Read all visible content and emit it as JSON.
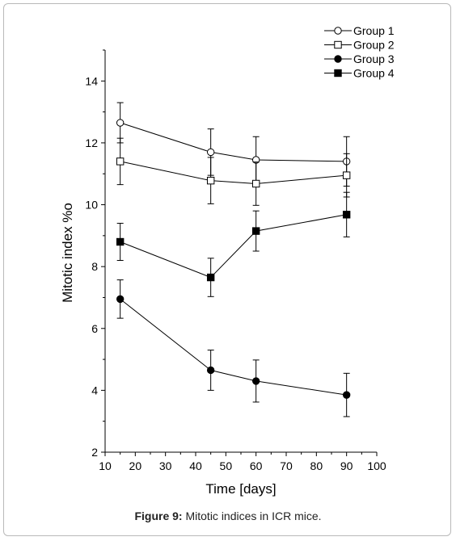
{
  "chart_data": {
    "type": "line",
    "xlabel": "Time [days]",
    "ylabel": "Mitotic index %o",
    "xlim": [
      10,
      100
    ],
    "ylim": [
      2,
      15
    ],
    "xticks": [
      10,
      20,
      30,
      40,
      50,
      60,
      70,
      80,
      90,
      100
    ],
    "yticks": [
      2,
      4,
      6,
      8,
      10,
      12,
      14
    ],
    "grid": false,
    "legend_position": "top-right",
    "x": [
      15,
      45,
      60,
      90
    ],
    "series": [
      {
        "name": "Group 1",
        "marker": "open-circle",
        "values": [
          12.65,
          11.7,
          11.45,
          11.4
        ],
        "errors": [
          0.65,
          0.75,
          0.75,
          0.8
        ]
      },
      {
        "name": "Group 2",
        "marker": "open-square",
        "values": [
          11.4,
          10.78,
          10.68,
          10.95
        ],
        "errors": [
          0.75,
          0.75,
          0.7,
          0.7
        ]
      },
      {
        "name": "Group 3",
        "marker": "filled-circle",
        "values": [
          6.95,
          4.65,
          4.3,
          3.85
        ],
        "errors": [
          0.62,
          0.65,
          0.68,
          0.7
        ]
      },
      {
        "name": "Group 4",
        "marker": "filled-square",
        "values": [
          8.8,
          7.65,
          9.15,
          9.68
        ],
        "errors": [
          0.6,
          0.62,
          0.65,
          0.72
        ]
      }
    ]
  },
  "caption": {
    "label": "Figure 9:",
    "text": " Mitotic indices in ICR mice."
  },
  "colors": {
    "ink": "#000000"
  }
}
